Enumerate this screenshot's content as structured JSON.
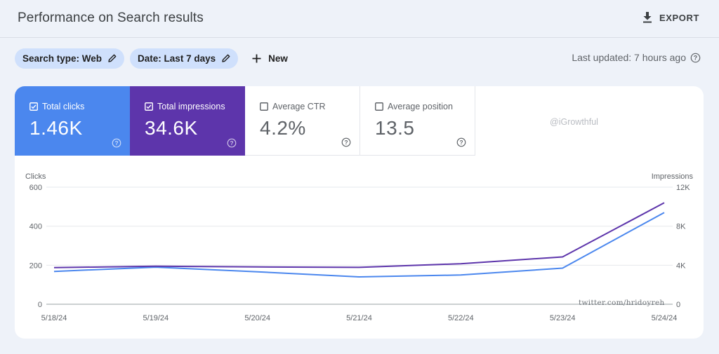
{
  "header": {
    "title": "Performance on Search results",
    "export_label": "EXPORT"
  },
  "filters": {
    "search_type": "Search type: Web",
    "date": "Date: Last 7 days",
    "new_label": "New"
  },
  "last_updated": "Last updated: 7 hours ago",
  "metrics": {
    "clicks": {
      "label": "Total clicks",
      "value": "1.46K",
      "checked": true,
      "color": "#4b87ee"
    },
    "impressions": {
      "label": "Total impressions",
      "value": "34.6K",
      "checked": true,
      "color": "#5d35ab"
    },
    "ctr": {
      "label": "Average CTR",
      "value": "4.2%",
      "checked": false
    },
    "position": {
      "label": "Average position",
      "value": "13.5",
      "checked": false
    }
  },
  "watermark_handle": "@iGrowthful",
  "watermark_twitter": "twitter.com/hridoyreh",
  "chart_data": {
    "type": "line",
    "x": [
      "5/18/24",
      "5/19/24",
      "5/20/24",
      "5/21/24",
      "5/22/24",
      "5/23/24",
      "5/24/24"
    ],
    "left_axis": {
      "label": "Clicks",
      "ticks": [
        "0",
        "200",
        "400",
        "600"
      ],
      "ylim": [
        0,
        600
      ]
    },
    "right_axis": {
      "label": "Impressions",
      "ticks": [
        "0",
        "4K",
        "8K",
        "12K"
      ],
      "ylim": [
        0,
        12000
      ]
    },
    "grid": true,
    "series": [
      {
        "name": "Total clicks",
        "axis": "left",
        "color": "#4b87ee",
        "values": [
          168,
          190,
          166,
          140,
          150,
          185,
          470
        ]
      },
      {
        "name": "Total impressions",
        "axis": "right",
        "color": "#5d35ab",
        "values": [
          3750,
          3900,
          3820,
          3780,
          4150,
          4850,
          10400
        ]
      }
    ]
  }
}
